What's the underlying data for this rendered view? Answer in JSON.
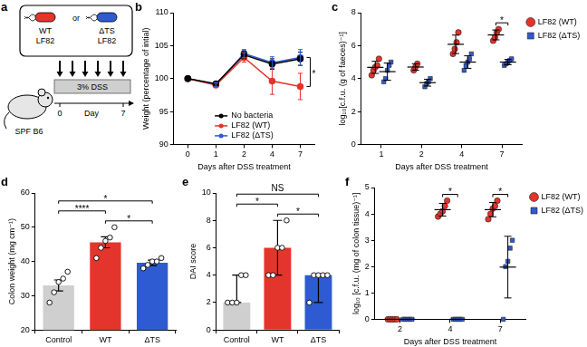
{
  "diagram": {
    "panel_label": "a",
    "strains": [
      {
        "name": "WT",
        "strain": "LF82",
        "color": "#e3352b"
      },
      {
        "name": "ΔTS",
        "strain": "LF82",
        "color": "#2e5bd1"
      }
    ],
    "separator": "or",
    "mouse": "SPF B6",
    "treatment": "3% DSS",
    "timeline": {
      "start": 0,
      "end": 7,
      "unit": "Day"
    }
  },
  "chart_data": [
    {
      "panel_label": "b",
      "type": "line",
      "categories": [
        "0",
        "1",
        "2",
        "4",
        "7"
      ],
      "x_label": "Days after DSS treatment",
      "y_label": "Weight (percentage of intial)",
      "ylim": [
        90,
        110
      ],
      "yticks": [
        90,
        95,
        100,
        105,
        110
      ],
      "grid": false,
      "legend": "lower center",
      "marker": "circle",
      "series": [
        {
          "name": "No bacteria",
          "color": "#000000",
          "values": [
            100,
            99.2,
            103.6,
            102.2,
            103.0
          ],
          "errors": [
            0,
            0.3,
            0.6,
            0.8,
            1.0
          ]
        },
        {
          "name": "LF82 (WT)",
          "color": "#e3352b",
          "values": [
            100,
            99.0,
            103.2,
            99.6,
            98.8
          ],
          "errors": [
            0,
            0.3,
            0.7,
            2.0,
            2.0
          ]
        },
        {
          "name": "LF82 (ΔTS)",
          "color": "#2e5bd1",
          "values": [
            100,
            99.1,
            103.8,
            102.4,
            103.2
          ],
          "errors": [
            0,
            0.3,
            0.6,
            0.9,
            1.2
          ]
        }
      ],
      "annotations": [
        {
          "text": "*",
          "category": "7",
          "from": "LF82 (WT)",
          "to": "LF82 (ΔTS)"
        }
      ]
    },
    {
      "panel_label": "c",
      "type": "scatter",
      "categories": [
        "1",
        "2",
        "4",
        "7"
      ],
      "x_label": "Days after DSS treatment",
      "y_label": "log₁₀[c.f.u. (g of faeces)⁻¹]",
      "ylim": [
        0,
        8
      ],
      "yticks": [
        0,
        2,
        4,
        6,
        8
      ],
      "grid": false,
      "legend": "right",
      "series": [
        {
          "name": "LF82 (WT)",
          "color": "#e3352b",
          "marker": "circle",
          "values": [
            [
              4.2,
              4.5,
              4.7,
              4.8,
              5.2
            ],
            [
              4.5,
              4.7,
              4.9
            ],
            [
              5.5,
              5.8,
              6.2,
              6.8
            ],
            [
              6.3,
              6.5,
              6.8,
              7.0
            ]
          ],
          "means": [
            4.68,
            4.7,
            6.08,
            6.65
          ],
          "errors": [
            0.37,
            0.2,
            0.56,
            0.3
          ]
        },
        {
          "name": "LF82 (ΔTS)",
          "color": "#2e5bd1",
          "marker": "square",
          "values": [
            [
              3.8,
              4.0,
              4.5,
              4.8,
              5.0
            ],
            [
              3.5,
              3.7,
              3.8,
              4.0
            ],
            [
              4.5,
              4.8,
              5.0,
              5.2,
              5.5
            ],
            [
              4.8,
              4.9,
              5.0,
              5.1,
              5.2
            ]
          ],
          "means": [
            4.42,
            3.75,
            5.0,
            5.0
          ],
          "errors": [
            0.52,
            0.21,
            0.38,
            0.16
          ]
        }
      ],
      "annotations": [
        {
          "text": "*",
          "category": "7"
        }
      ]
    },
    {
      "panel_label": "d",
      "type": "bar",
      "categories": [
        "Control",
        "WT",
        "ΔTS"
      ],
      "y_label": "Colon weight (mg cm⁻¹)",
      "ylim": [
        20,
        60
      ],
      "yticks": [
        20,
        30,
        40,
        50,
        60
      ],
      "grid": false,
      "values": [
        33,
        45.6,
        39.6
      ],
      "colors": [
        "#cfcfcf",
        "#e3352b",
        "#2e5bd1"
      ],
      "errors": [
        1.6,
        1.6,
        0.8
      ],
      "points": [
        [
          28,
          31,
          34,
          35,
          37
        ],
        [
          41,
          44,
          46,
          47,
          50
        ],
        [
          38,
          39,
          40,
          40,
          41
        ]
      ],
      "annotations": [
        {
          "text": "*",
          "from": "WT",
          "to": "ΔTS"
        },
        {
          "text": "****",
          "from": "Control",
          "to": "WT"
        },
        {
          "text": "*",
          "from": "Control",
          "to": "ΔTS"
        }
      ]
    },
    {
      "panel_label": "e",
      "type": "bar",
      "categories": [
        "Control",
        "WT",
        "ΔTS"
      ],
      "y_label": "DAI score",
      "ylim": [
        0,
        10
      ],
      "yticks": [
        0,
        2,
        4,
        6,
        8,
        10
      ],
      "grid": false,
      "values": [
        2,
        6,
        4
      ],
      "colors": [
        "#cfcfcf",
        "#e3352b",
        "#2e5bd1"
      ],
      "ranges": [
        [
          2,
          4
        ],
        [
          4,
          8
        ],
        [
          2,
          4
        ]
      ],
      "points": [
        [
          2,
          2,
          2,
          4,
          4
        ],
        [
          4,
          4,
          6,
          6,
          8
        ],
        [
          2,
          4,
          4,
          4,
          4
        ]
      ],
      "annotations": [
        {
          "text": "*",
          "from": "WT",
          "to": "ΔTS"
        },
        {
          "text": "*",
          "from": "Control",
          "to": "WT"
        },
        {
          "text": "NS",
          "from": "Control",
          "to": "ΔTS"
        }
      ]
    },
    {
      "panel_label": "f",
      "type": "scatter",
      "categories": [
        "2",
        "4",
        "7"
      ],
      "x_label": "Days after DSS treatment",
      "y_label": "log₁₀ [c.f.u. (mg of colon tissue)⁻¹]",
      "ylim": [
        0,
        5
      ],
      "yticks": [
        0,
        1,
        2,
        3,
        4,
        5
      ],
      "grid": false,
      "legend": "right",
      "series": [
        {
          "name": "LF82 (WT)",
          "color": "#e3352b",
          "marker": "circle",
          "values": [
            [
              0,
              0,
              0,
              0,
              0
            ],
            [
              3.9,
              4.0,
              4.1,
              4.3,
              4.5
            ],
            [
              3.8,
              4.0,
              4.2,
              4.3,
              4.5
            ]
          ],
          "means": [
            0,
            4.16,
            4.16
          ],
          "errors": [
            0,
            0.24,
            0.27
          ]
        },
        {
          "name": "LF82 (ΔTS)",
          "color": "#2e5bd1",
          "marker": "square",
          "values": [
            [
              0,
              0,
              0,
              0,
              0
            ],
            [
              0,
              0,
              0,
              0,
              0
            ],
            [
              0,
              2.0,
              2.2,
              2.7,
              3.0
            ]
          ],
          "means": [
            0,
            0,
            1.98
          ],
          "errors": [
            0,
            0,
            1.17
          ]
        }
      ],
      "annotations": [
        {
          "text": "*",
          "category": "4"
        },
        {
          "text": "*",
          "category": "7"
        }
      ]
    }
  ]
}
